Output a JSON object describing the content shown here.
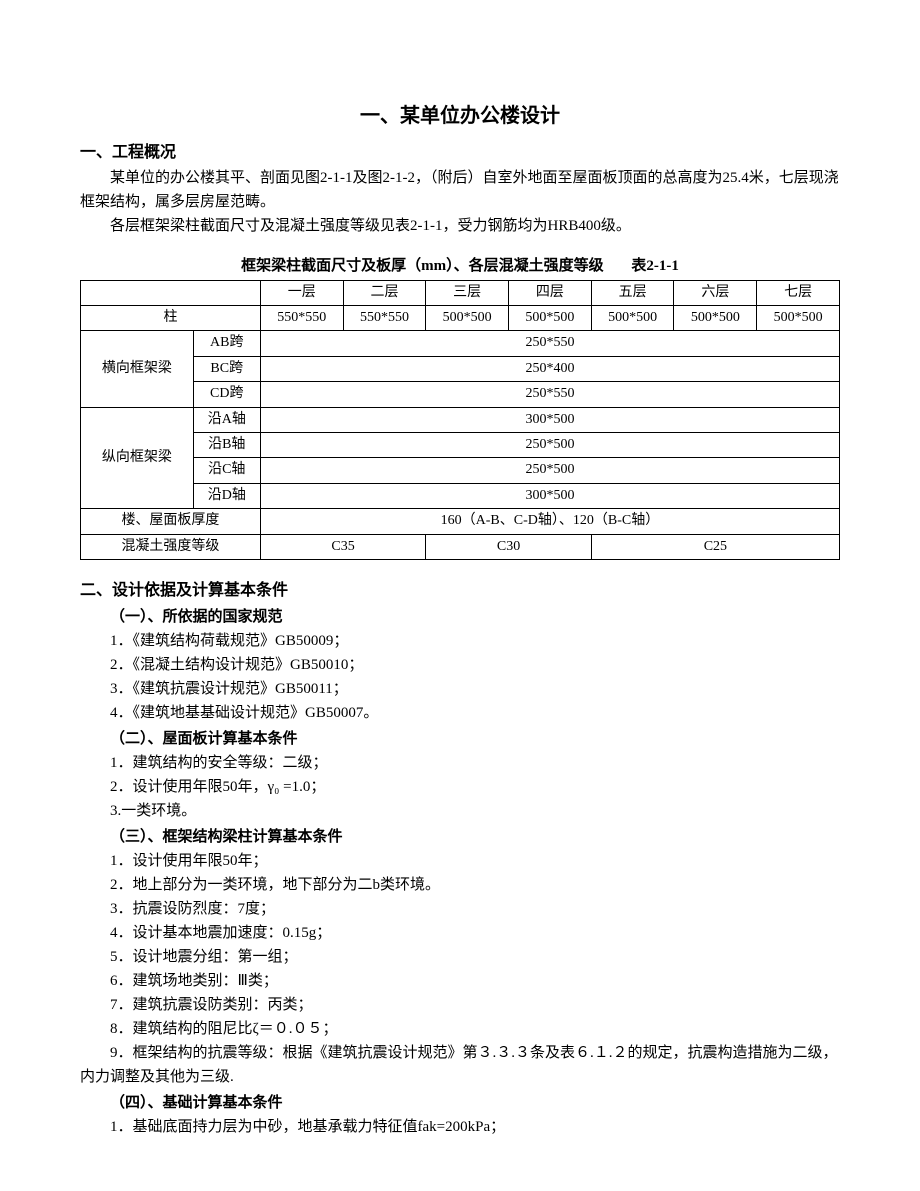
{
  "title": "一、某单位办公楼设计",
  "sec1": {
    "header": "一、工程概况",
    "p1": "某单位的办公楼其平、剖面见图2-1-1及图2-1-2，（附后）自室外地面至屋面板顶面的总高度为25.4米，七层现浇框架结构，属多层房屋范畴。",
    "p2": "各层框架梁柱截面尺寸及混凝土强度等级见表2-1-1，受力钢筋均为HRB400级。"
  },
  "table": {
    "caption": "框架梁柱截面尺寸及板厚（mm）、各层混凝土强度等级",
    "caption_num": "表2-1-1",
    "cols_header": [
      "一层",
      "二层",
      "三层",
      "四层",
      "五层",
      "六层",
      "七层"
    ],
    "row_col_label": "柱",
    "col_vals": [
      "550*550",
      "550*550",
      "500*500",
      "500*500",
      "500*500",
      "500*500",
      "500*500"
    ],
    "group1_label": "横向框架梁",
    "g1r1_label": "AB跨",
    "g1r1_val": "250*550",
    "g1r2_label": "BC跨",
    "g1r2_val": "250*400",
    "g1r3_label": "CD跨",
    "g1r3_val": "250*550",
    "group2_label": "纵向框架梁",
    "g2r1_label": "沿A轴",
    "g2r1_val": "300*500",
    "g2r2_label": "沿B轴",
    "g2r2_val": "250*500",
    "g2r3_label": "沿C轴",
    "g2r3_val": "250*500",
    "g2r4_label": "沿D轴",
    "g2r4_val": "300*500",
    "row_slab_label": "楼、屋面板厚度",
    "row_slab_val": "160（A-B、C-D轴）、120（B-C轴）",
    "row_conc_label": "混凝土强度等级",
    "conc_c35": "C35",
    "conc_c30": "C30",
    "conc_c25": "C25"
  },
  "sec2": {
    "header": "二、设计依据及计算基本条件",
    "sub1_header": "（一）、所依据的国家规范",
    "s1_1": "  1．《建筑结构荷载规范》GB50009；",
    "s1_2": "  2．《混凝土结构设计规范》GB50010；",
    "s1_3": "  3．《建筑抗震设计规范》GB50011；",
    "s1_4": "  4．《建筑地基基础设计规范》GB50007。",
    "sub2_header": "（二）、屋面板计算基本条件",
    "s2_1": "  1．建筑结构的安全等级：二级；",
    "s2_2": "  2．设计使用年限50年，γ₀ =1.0；",
    "s2_3": "  3.一类环境。",
    "sub3_header": "（三）、框架结构梁柱计算基本条件",
    "s3_1": "  1．设计使用年限50年；",
    "s3_2": "  2．地上部分为一类环境，地下部分为二b类环境。",
    "s3_3": "  3．抗震设防烈度：7度；",
    "s3_4": "  4．设计基本地震加速度：0.15g；",
    "s3_5": "  5．设计地震分组：第一组；",
    "s3_6": "  6．建筑场地类别：Ⅲ类；",
    "s3_7": "  7．建筑抗震设防类别：丙类；",
    "s3_8": "  8．建筑结构的阻尼比ζ＝０.０５；",
    "s3_9": "  9．框架结构的抗震等级：根据《建筑抗震设计规范》第３.３.３条及表６.１.２的规定，抗震构造措施为二级，内力调整及其他为三级.",
    "sub4_header": "（四）、基础计算基本条件",
    "s4_1": "  1．基础底面持力层为中砂，地基承载力特征值fak=200kPa；"
  }
}
